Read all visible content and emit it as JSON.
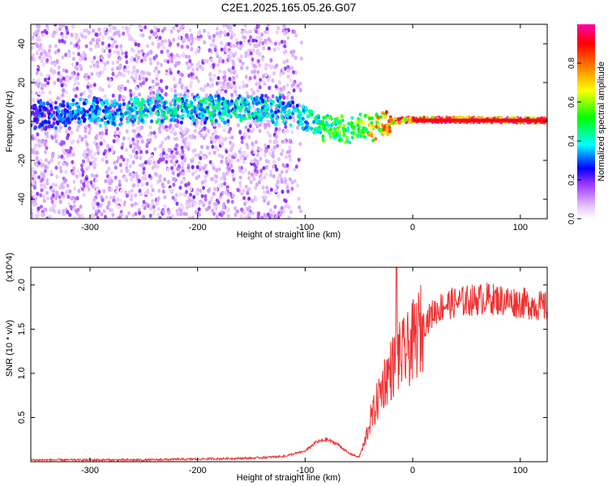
{
  "chart_data": [
    {
      "type": "heatmap",
      "title": "C2E1.2025.165.05.26.G07",
      "xlabel": "Height of straight line (km)",
      "ylabel": "Frequency (Hz)",
      "xlim": [
        -355,
        125
      ],
      "ylim": [
        -50,
        50
      ],
      "x_ticks": [
        -300,
        -200,
        -100,
        0,
        100
      ],
      "y_ticks": [
        -40,
        -20,
        0,
        20,
        40
      ],
      "colorbar": {
        "label": "Normalized spectral amplitude",
        "range": [
          0.0,
          1.0
        ],
        "ticks": [
          0.0,
          0.2,
          0.4,
          0.6,
          0.8
        ],
        "tick_labels": [
          "0.0",
          "0.2",
          "0.4",
          "0.6",
          "0.8"
        ],
        "colors": [
          "#ffffff",
          "#e8c8ff",
          "#9933ff",
          "#0000ff",
          "#00ffff",
          "#00ff00",
          "#ffff00",
          "#ff8000",
          "#ff0000",
          "#ff00aa"
        ]
      },
      "ridge": {
        "description_points": [
          {
            "x": -350,
            "y": 3,
            "amp": 0.3
          },
          {
            "x": -250,
            "y": 6,
            "amp": 0.45
          },
          {
            "x": -150,
            "y": 7,
            "amp": 0.45
          },
          {
            "x": -110,
            "y": 5,
            "amp": 0.4
          },
          {
            "x": -90,
            "y": -2,
            "amp": 0.5
          },
          {
            "x": -60,
            "y": -5,
            "amp": 0.6
          },
          {
            "x": -40,
            "y": -3,
            "amp": 0.7
          },
          {
            "x": -20,
            "y": 0,
            "amp": 0.85
          },
          {
            "x": 0,
            "y": 1,
            "amp": 0.95
          },
          {
            "x": 125,
            "y": 0.5,
            "amp": 0.95
          }
        ]
      },
      "grid": false
    },
    {
      "type": "line",
      "xlabel": "Height of straight line (km)",
      "ylabel": "SNR (10 * v/v)",
      "y_multiplier": "(x10^4)",
      "xlim": [
        -355,
        125
      ],
      "ylim": [
        0,
        2.2
      ],
      "x_ticks": [
        -300,
        -200,
        -100,
        0,
        100
      ],
      "y_ticks": [
        0.5,
        1.0,
        1.5,
        2.0
      ],
      "y_tick_labels": [
        "0.5",
        "1.0",
        "1.5",
        "2.0"
      ],
      "series": [
        {
          "color": "#ee3333",
          "x": [
            -355,
            -300,
            -250,
            -200,
            -150,
            -120,
            -100,
            -90,
            -80,
            -70,
            -60,
            -50,
            -45,
            -40,
            -35,
            -30,
            -25,
            -20,
            -15,
            -10,
            -5,
            0,
            10,
            20,
            30,
            50,
            70,
            100,
            125
          ],
          "y": [
            0.02,
            0.02,
            0.02,
            0.03,
            0.04,
            0.06,
            0.12,
            0.22,
            0.25,
            0.2,
            0.1,
            0.05,
            0.2,
            0.45,
            0.6,
            0.8,
            0.95,
            1.05,
            1.15,
            1.2,
            1.25,
            1.35,
            1.55,
            1.7,
            1.78,
            1.82,
            1.85,
            1.8,
            1.75
          ]
        }
      ],
      "grid": false
    }
  ]
}
